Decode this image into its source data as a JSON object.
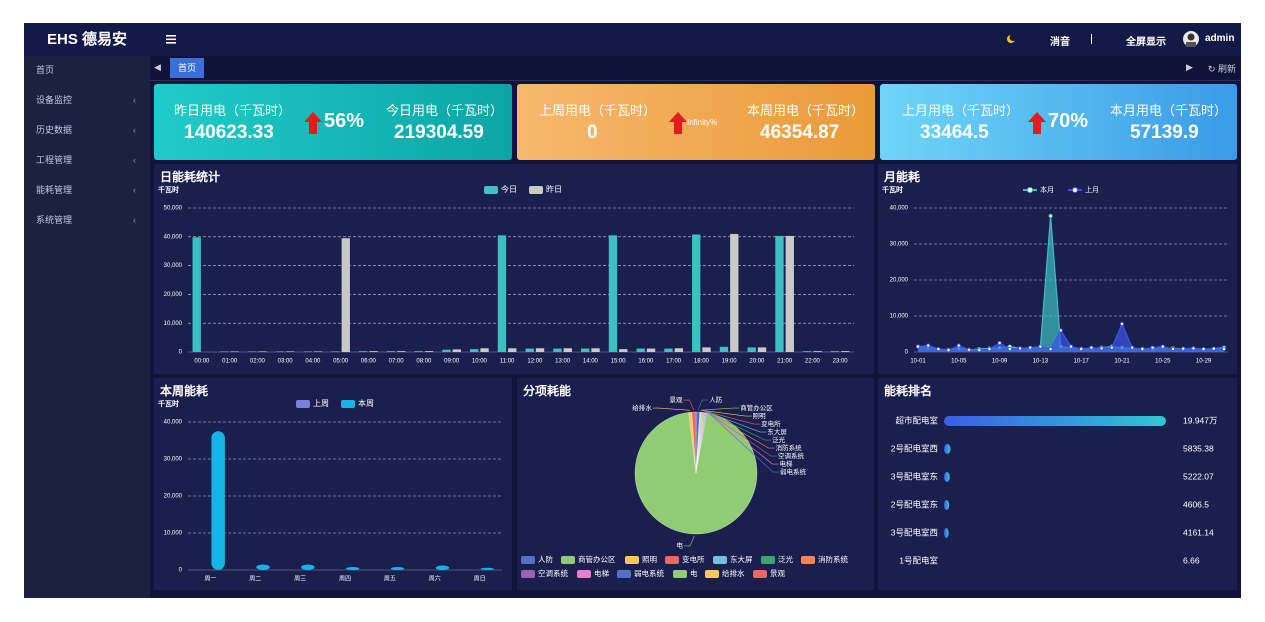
{
  "header": {
    "logo": "EHS 德易安",
    "mute": "消音",
    "fullscreen": "全屏显示",
    "user": "admin"
  },
  "tabs": {
    "active": "首页",
    "refresh": "刷新"
  },
  "sidebar": {
    "items": [
      "首页",
      "设备监控",
      "历史数据",
      "工程管理",
      "能耗管理",
      "系统管理"
    ]
  },
  "kpi_cards": [
    {
      "left_label": "昨日用电（千瓦时）",
      "left_value": "140623.33",
      "change": "56%",
      "right_label": "今日用电（千瓦时）",
      "right_value": "219304.59"
    },
    {
      "left_label": "上周用电（千瓦时）",
      "left_value": "0",
      "change": "Infinity%",
      "right_label": "本周用电（千瓦时）",
      "right_value": "46354.87"
    },
    {
      "left_label": "上月用电（千瓦时）",
      "left_value": "33464.5",
      "change": "70%",
      "right_label": "本月用电（千瓦时）",
      "right_value": "57139.9"
    }
  ],
  "chart_data": [
    {
      "type": "bar",
      "title": "日能耗统计",
      "y_label": "千瓦时",
      "categories": [
        "00:00",
        "01:00",
        "02:00",
        "03:00",
        "04:00",
        "05:00",
        "06:00",
        "07:00",
        "08:00",
        "09:00",
        "10:00",
        "11:00",
        "12:00",
        "13:00",
        "14:00",
        "15:00",
        "16:00",
        "17:00",
        "18:00",
        "19:00",
        "20:00",
        "21:00",
        "22:00",
        "23:00"
      ],
      "series": [
        {
          "name": "今日",
          "color": "#3cc0c0",
          "values": [
            39800,
            200,
            200,
            200,
            200,
            200,
            300,
            300,
            300,
            800,
            1000,
            40500,
            1200,
            1200,
            1200,
            40500,
            1200,
            1200,
            40800,
            1800,
            1600,
            40300,
            300,
            300
          ]
        },
        {
          "name": "昨日",
          "color": "#c9c9c9",
          "values": [
            0,
            200,
            200,
            200,
            200,
            39500,
            300,
            300,
            300,
            900,
            1300,
            1300,
            1300,
            1300,
            1300,
            1000,
            1200,
            1300,
            1600,
            41000,
            1600,
            40300,
            300,
            300
          ]
        }
      ],
      "ylim": [
        0,
        50000
      ],
      "yticks": [
        0,
        {
          "value": 10000,
          "label": "10,000"
        },
        {
          "value": 20000,
          "label": "20,000"
        },
        {
          "value": 30000,
          "label": "30,000"
        },
        {
          "value": 40000,
          "label": "40,000"
        },
        {
          "value": 50000,
          "label": "50,000"
        }
      ],
      "grid": true
    },
    {
      "type": "line",
      "title": "月能耗",
      "y_label": "千瓦时",
      "area": true,
      "categories": [
        "10-01",
        null,
        null,
        null,
        "10-05",
        null,
        null,
        null,
        "10-09",
        null,
        null,
        null,
        "10-13",
        null,
        null,
        null,
        "10-17",
        null,
        null,
        null,
        "10-21",
        null,
        null,
        null,
        "10-25",
        null,
        null,
        null,
        "10-29",
        null,
        null
      ],
      "series": [
        {
          "name": "本月",
          "color": "#3cc0c0",
          "values": [
            1500,
            1200,
            800,
            600,
            1000,
            600,
            800,
            1000,
            1200,
            1500,
            1000,
            900,
            1500,
            37800,
            1500,
            1200,
            900,
            1000,
            1200,
            1500,
            1200,
            1000,
            900,
            800,
            1200,
            1000,
            900,
            1000,
            800,
            900,
            1200
          ]
        },
        {
          "name": "上月",
          "color": "#3b55e6",
          "values": [
            1500,
            1800,
            800,
            500,
            1800,
            600,
            500,
            800,
            2500,
            800,
            1000,
            1200,
            1500,
            800,
            6000,
            1500,
            800,
            1200,
            1000,
            1200,
            7800,
            1200,
            800,
            1200,
            1500,
            800,
            900,
            1000,
            800,
            900,
            800
          ]
        }
      ],
      "ylim": [
        0,
        40000
      ],
      "yticks": [
        0,
        {
          "value": 10000,
          "label": "10,000"
        },
        {
          "value": 20000,
          "label": "20,000"
        },
        {
          "value": 30000,
          "label": "30,000"
        },
        {
          "value": 40000,
          "label": "40,000"
        }
      ],
      "grid": true
    },
    {
      "type": "bar",
      "title": "本周能耗",
      "y_label": "千瓦时",
      "rounded": true,
      "categories": [
        "周一",
        "周二",
        "周三",
        "周四",
        "周五",
        "周六",
        "周日"
      ],
      "series": [
        {
          "name": "上周",
          "color": "#7b7fdc",
          "values": [
            0,
            0,
            0,
            0,
            0,
            0,
            0
          ]
        },
        {
          "name": "本周",
          "color": "#14b4e6",
          "values": [
            37500,
            1500,
            1500,
            800,
            800,
            1200,
            600
          ]
        }
      ],
      "ylim": [
        0,
        40000
      ],
      "yticks": [
        0,
        {
          "value": 10000,
          "label": "10,000"
        },
        {
          "value": 20000,
          "label": "20,000"
        },
        {
          "value": 30000,
          "label": "30,000"
        },
        {
          "value": 40000,
          "label": "40,000"
        }
      ],
      "grid": true
    },
    {
      "type": "pie",
      "title": "分项耗能",
      "categories": [
        "人防",
        "商管办公区",
        "照明",
        "变电所",
        "东大屏",
        "泛光",
        "消防系统",
        "空调系统",
        "电梯",
        "弱电系统",
        "电",
        "给排水",
        "景观"
      ],
      "values": [
        1.0,
        0.2,
        0.2,
        0.2,
        0.2,
        0.2,
        0.2,
        0.2,
        0.2,
        0.2,
        95.5,
        0.8,
        1.1
      ],
      "colors": [
        "#5470c6",
        "#91cc75",
        "#fac858",
        "#ee6666",
        "#73c0de",
        "#3ba272",
        "#fc8452",
        "#9a60b4",
        "#ea7ccc",
        "#5470c6",
        "#91cc75",
        "#fac858",
        "#ee6666"
      ]
    },
    {
      "type": "bar",
      "title": "能耗排名",
      "horizontal": true,
      "categories": [
        "超市配电室",
        "2号配电室西",
        "3号配电室东",
        "2号配电室东",
        "3号配电室西",
        "1号配电室"
      ],
      "values": [
        199470,
        5835.38,
        5222.07,
        4606.5,
        4161.14,
        6.66
      ],
      "value_labels": [
        "19.947万",
        "5835.38",
        "5222.07",
        "4606.5",
        "4161.14",
        "6.66"
      ],
      "colors": [
        "#3b5ee6",
        "#2ec8d4"
      ]
    }
  ]
}
